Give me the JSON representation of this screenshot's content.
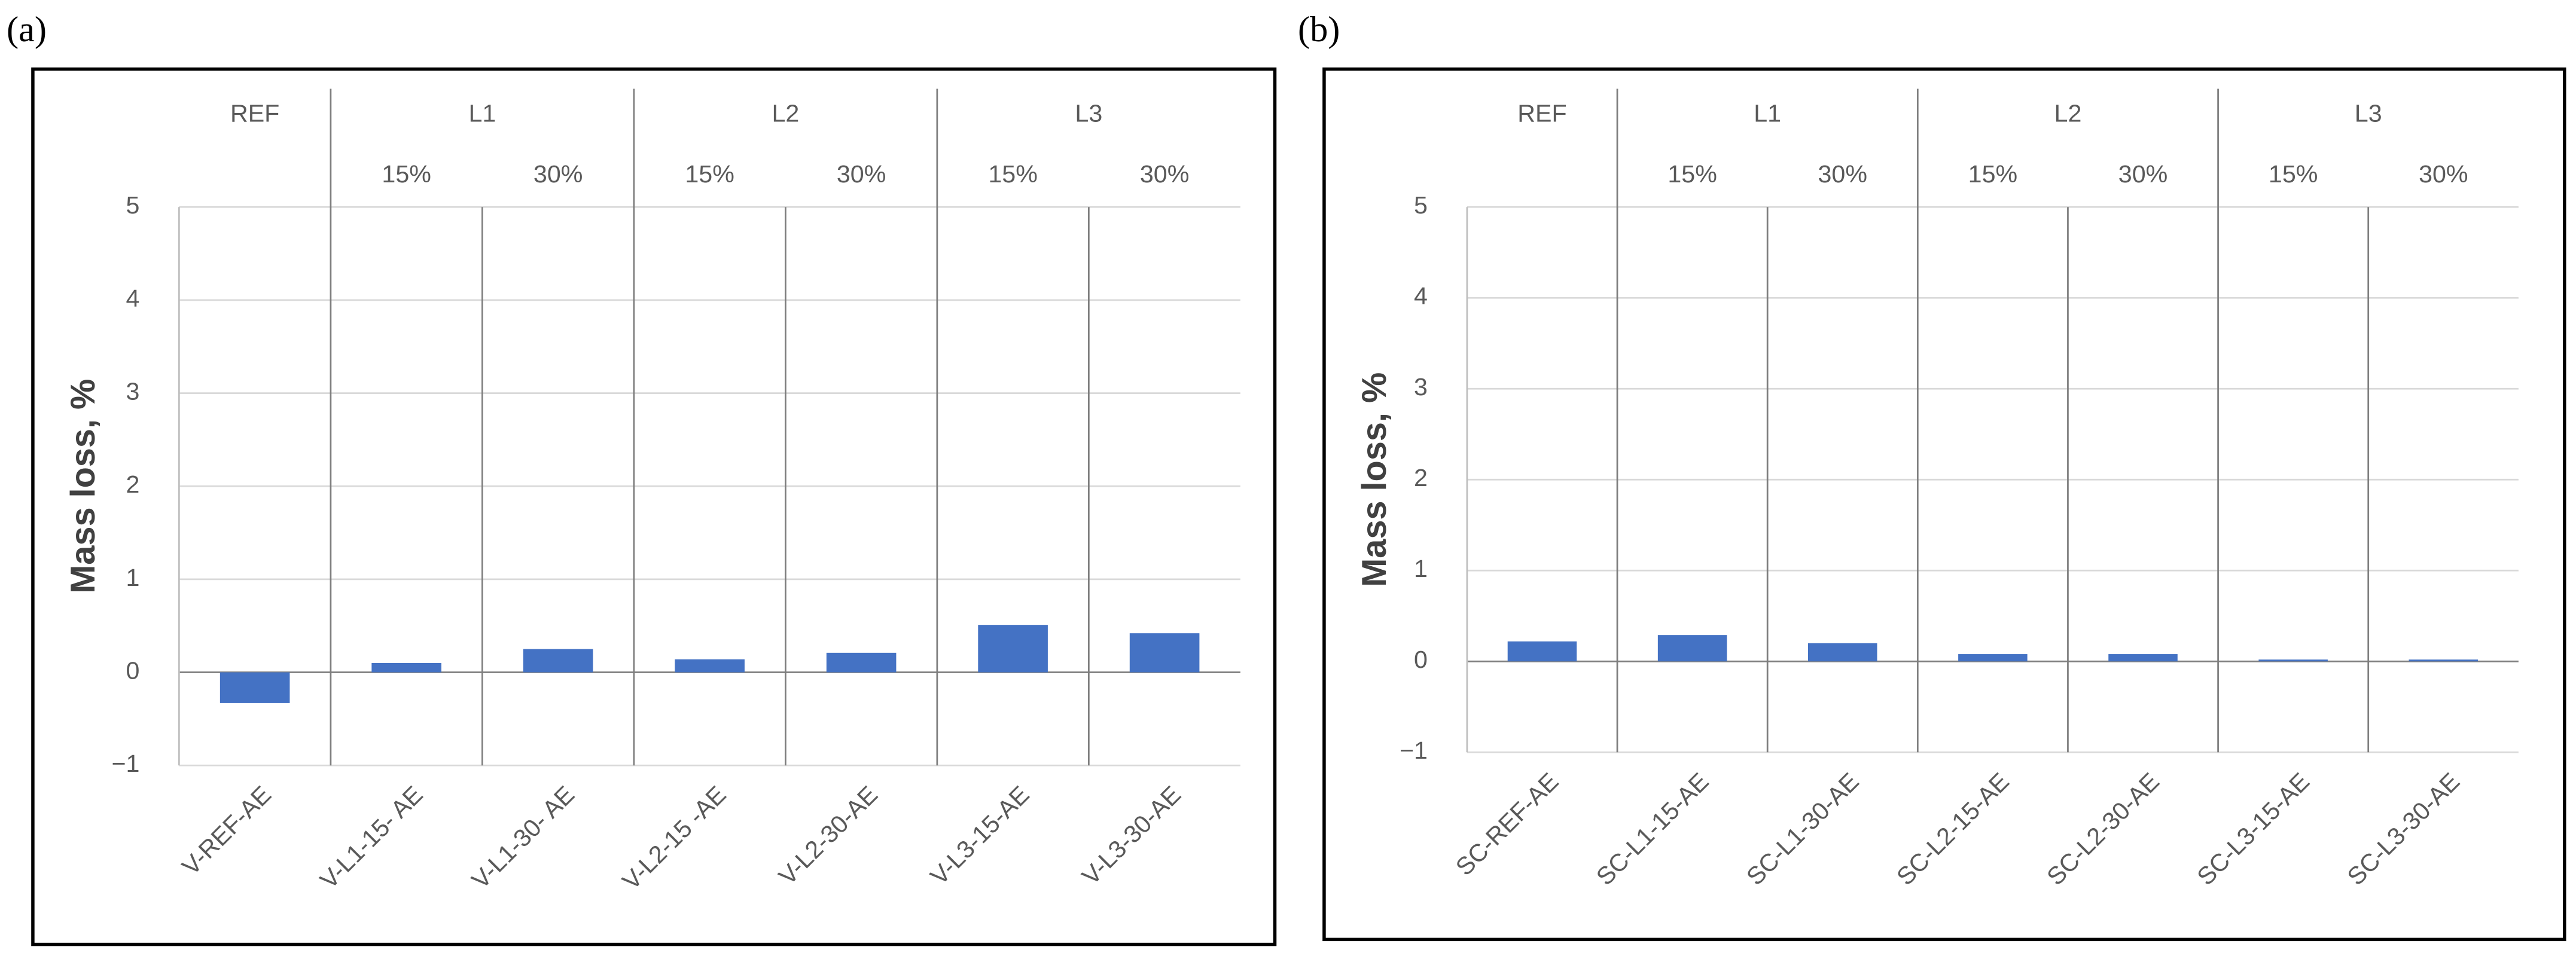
{
  "chart_data": [
    {
      "type": "bar",
      "panel_label": "(a)",
      "y_label": "Mass loss, %",
      "color": "#4472c4",
      "categories": [
        "V-REF-AE",
        "V-L1-15- AE",
        "V-L1-30- AE",
        "V-L2-15 -AE",
        "V-L2-30-AE",
        "V-L3-15-AE",
        "V-L3-30-AE"
      ],
      "groups": [
        {
          "label": "REF",
          "subcategories": [
            null
          ]
        },
        {
          "label": "L1",
          "subcategories": [
            "15%",
            "30%"
          ]
        },
        {
          "label": "L2",
          "subcategories": [
            "15%",
            "30%"
          ]
        },
        {
          "label": "L3",
          "subcategories": [
            "15%",
            "30%"
          ]
        }
      ],
      "values": [
        -0.33,
        0.1,
        0.25,
        0.14,
        0.21,
        0.51,
        0.42
      ],
      "ylim": [
        -1,
        5
      ],
      "yticks": [
        {
          "value": -1,
          "label": "−1"
        },
        0,
        1,
        2,
        3,
        4,
        5
      ],
      "grid": true
    },
    {
      "type": "bar",
      "panel_label": "(b)",
      "y_label": "Mass loss, %",
      "color": "#4472c4",
      "categories": [
        "SC-REF-AE",
        "SC-L1-15-AE",
        "SC-L1-30-AE",
        "SC-L2-15-AE",
        "SC-L2-30-AE",
        "SC-L3-15-AE",
        "SC-L3-30-AE"
      ],
      "groups": [
        {
          "label": "REF",
          "subcategories": [
            null
          ]
        },
        {
          "label": "L1",
          "subcategories": [
            "15%",
            "30%"
          ]
        },
        {
          "label": "L2",
          "subcategories": [
            "15%",
            "30%"
          ]
        },
        {
          "label": "L3",
          "subcategories": [
            "15%",
            "30%"
          ]
        }
      ],
      "values": [
        0.22,
        0.29,
        0.2,
        0.08,
        0.08,
        0.02,
        0.02
      ],
      "ylim": [
        -1,
        5
      ],
      "yticks": [
        {
          "value": -1,
          "label": "−1"
        },
        0,
        1,
        2,
        3,
        4,
        5
      ],
      "grid": true
    }
  ]
}
